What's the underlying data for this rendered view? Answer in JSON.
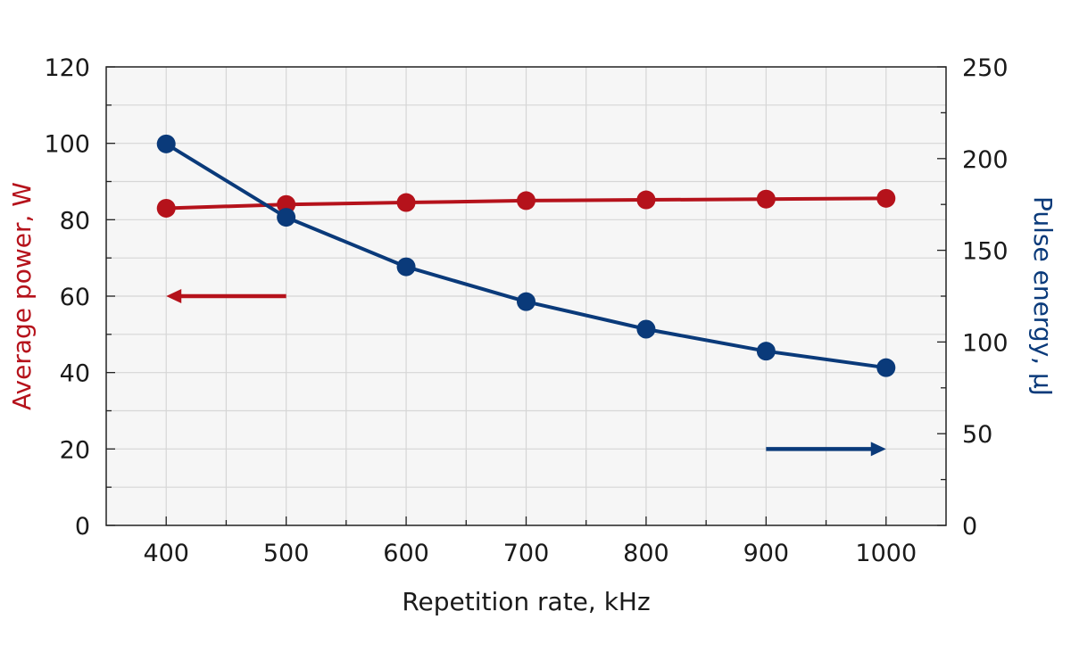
{
  "chart_data": {
    "type": "line",
    "title": "",
    "x": [
      400,
      500,
      600,
      700,
      800,
      900,
      1000
    ],
    "xlabel": "Repetition rate, kHz",
    "xlim": [
      350,
      1050
    ],
    "x_ticks": [
      "400",
      "500",
      "600",
      "700",
      "800",
      "900",
      "1000"
    ],
    "y_left": {
      "label": "Average power, W",
      "lim": [
        0,
        120
      ],
      "ticks": [
        "0",
        "20",
        "40",
        "60",
        "80",
        "100",
        "120"
      ],
      "color": "#b5121b"
    },
    "y_right": {
      "label": "Pulse energy, µJ",
      "lim": [
        0,
        250
      ],
      "ticks": [
        "0",
        "50",
        "100",
        "150",
        "200",
        "250"
      ],
      "color": "#0a3a7a"
    },
    "series": [
      {
        "axis": "left",
        "color": "#b5121b",
        "values": [
          83,
          84,
          84.5,
          85,
          85.2,
          85.4,
          85.6
        ]
      },
      {
        "axis": "right",
        "color": "#0a3a7a",
        "values": [
          208,
          168,
          141,
          122,
          107,
          95,
          86
        ]
      }
    ],
    "annotations": [
      {
        "type": "arrow",
        "direction": "left",
        "color": "#b5121b",
        "x_from": 500,
        "x_to": 400,
        "axis": "left",
        "y": 60
      },
      {
        "type": "arrow",
        "direction": "right",
        "color": "#0a3a7a",
        "x_from": 900,
        "x_to": 1000,
        "axis": "left",
        "y": 20
      }
    ],
    "grid": true,
    "plot_background": "#f6f6f6"
  }
}
